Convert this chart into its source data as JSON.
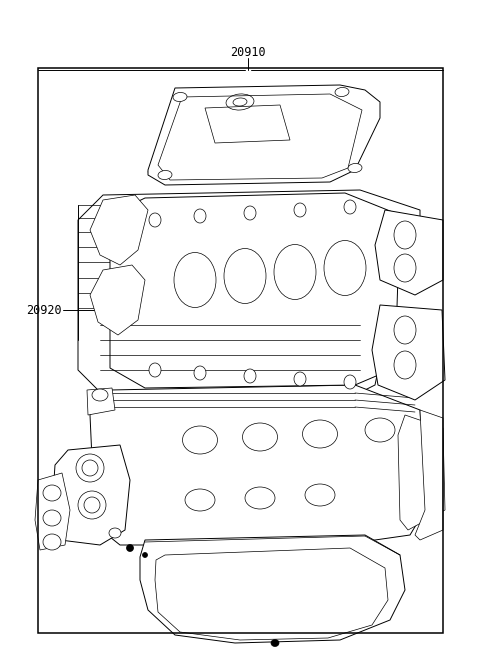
{
  "bg_color": "#ffffff",
  "line_color": "#000000",
  "label_20910": "20910",
  "label_20920": "20920",
  "fig_width": 4.8,
  "fig_height": 6.57,
  "dpi": 100,
  "border_lw": 1.0,
  "annotation_lw": 0.6,
  "part_lw": 0.7,
  "label_fontsize": 8.5,
  "leader_color": "#333333"
}
